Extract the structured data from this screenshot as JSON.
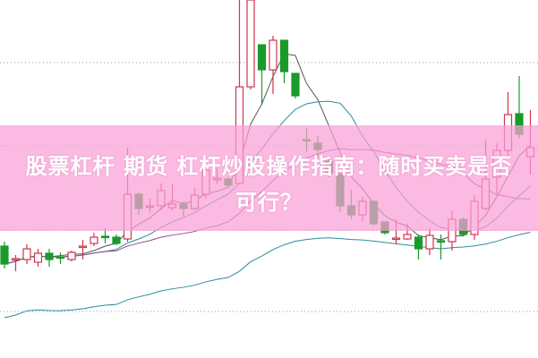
{
  "title": {
    "line1": "股票杠杆 期货 杠杆炒股操作指南：随时买卖是否",
    "line2": "可行？"
  },
  "colors": {
    "up": "#d0344c",
    "down": "#1a9a2a",
    "banner": "#f9a8d8",
    "grid": "#999999",
    "ma_short": "#555555",
    "ma_mid": "#2a8c9a",
    "ma_long": "#8a4a8a",
    "ma_longest": "#2a8c9a"
  },
  "chart_data": {
    "type": "candlestick",
    "grid": true,
    "columns": [
      "open",
      "high",
      "low",
      "close"
    ],
    "candles": [
      [
        125,
        130,
        100,
        105
      ],
      [
        110,
        115,
        97,
        111
      ],
      [
        110,
        127,
        105,
        122
      ],
      [
        107,
        122,
        102,
        117
      ],
      [
        117,
        122,
        102,
        110
      ],
      [
        113,
        118,
        105,
        112
      ],
      [
        110,
        120,
        108,
        118
      ],
      [
        124,
        132,
        110,
        125
      ],
      [
        128,
        140,
        125,
        135
      ],
      [
        136,
        145,
        128,
        135
      ],
      [
        135,
        138,
        126,
        128
      ],
      [
        133,
        235,
        130,
        183
      ],
      [
        183,
        185,
        160,
        167
      ],
      [
        169,
        178,
        162,
        170
      ],
      [
        170,
        195,
        165,
        187
      ],
      [
        168,
        195,
        165,
        172
      ],
      [
        172,
        175,
        158,
        167
      ],
      [
        167,
        190,
        165,
        182
      ],
      [
        183,
        215,
        178,
        210
      ],
      [
        199,
        212,
        195,
        201
      ],
      [
        200,
        202,
        191,
        193
      ],
      [
        195,
        400,
        195,
        303
      ],
      [
        303,
        410,
        300,
        400
      ],
      [
        350,
        350,
        283,
        322
      ],
      [
        322,
        360,
        295,
        355
      ],
      [
        355,
        355,
        307,
        320
      ],
      [
        318,
        318,
        290,
        293
      ],
      [
        244,
        257,
        230,
        243
      ],
      [
        240,
        248,
        225,
        233
      ],
      [
        220,
        225,
        202,
        207
      ],
      [
        205,
        207,
        163,
        170
      ],
      [
        170,
        188,
        155,
        160
      ],
      [
        160,
        180,
        153,
        175
      ],
      [
        175,
        175,
        148,
        150
      ],
      [
        152,
        152,
        138,
        140
      ],
      [
        133,
        155,
        127,
        134
      ],
      [
        133,
        150,
        132,
        138
      ],
      [
        135,
        138,
        110,
        122
      ],
      [
        122,
        145,
        115,
        137
      ],
      [
        131,
        138,
        110,
        130
      ],
      [
        130,
        165,
        120,
        155
      ],
      [
        155,
        157,
        137,
        138
      ],
      [
        138,
        182,
        132,
        175
      ],
      [
        167,
        243,
        165,
        200
      ],
      [
        202,
        240,
        182,
        232
      ],
      [
        232,
        297,
        225,
        272
      ],
      [
        273,
        315,
        245,
        250
      ],
      [
        225,
        277,
        205,
        235
      ]
    ],
    "moving_averages": [
      5,
      10,
      20,
      40
    ]
  }
}
